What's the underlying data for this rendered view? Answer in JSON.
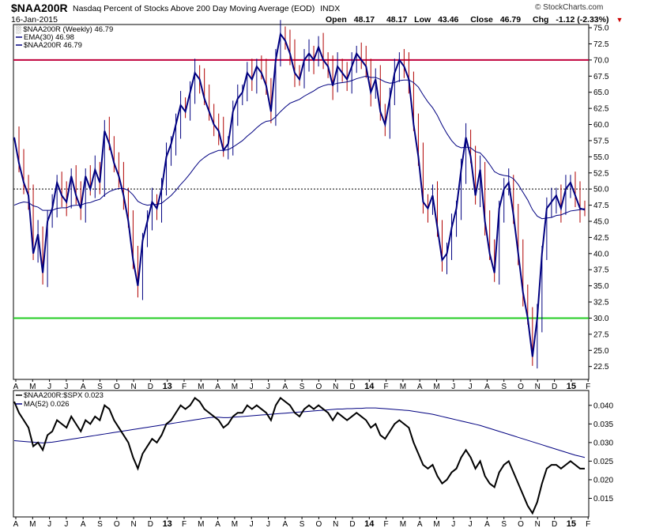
{
  "header": {
    "symbol": "$NAA200R",
    "description": "Nasdaq Percent of Stocks Above 200 Day Moving Average (EOD)",
    "exchange": "INDX",
    "date": "16-Jan-2015",
    "open_label": "Open",
    "open": "48.17",
    "high": "48.17",
    "low_label": "Low",
    "low": "43.46",
    "close_label": "Close",
    "close": "46.79",
    "chg_label": "Chg",
    "chg": "-1.12 (-2.33%)",
    "copyright": "© StockCharts.com"
  },
  "colors": {
    "price": "#000080",
    "ema": "#000080",
    "up_bar": "#000080",
    "down_bar": "#b00000",
    "upper_line": "#c0003c",
    "lower_line": "#22cc22",
    "mid_line": "#000000",
    "ratio": "#000000",
    "ratio_ma": "#000080"
  },
  "chart_data": [
    {
      "type": "line",
      "legend": [
        "$NAA200R (Weekly) 46.79",
        "EMA(30) 46.98",
        "$NAA200R 46.79"
      ],
      "ylim": [
        20.5,
        75.5
      ],
      "yticks": [
        22.5,
        25.0,
        27.5,
        30.0,
        32.5,
        35.0,
        37.5,
        40.0,
        42.5,
        45.0,
        47.5,
        50.0,
        52.5,
        55.0,
        57.5,
        60.0,
        62.5,
        65.0,
        67.5,
        70.0,
        72.5,
        75.0
      ],
      "xticks": [
        "A",
        "M",
        "J",
        "J",
        "A",
        "S",
        "O",
        "N",
        "D",
        "13",
        "F",
        "M",
        "A",
        "M",
        "J",
        "J",
        "A",
        "S",
        "O",
        "N",
        "D",
        "14",
        "F",
        "M",
        "A",
        "M",
        "J",
        "J",
        "A",
        "S",
        "O",
        "N",
        "D",
        "15",
        "F"
      ],
      "reference_lines": [
        70,
        50,
        30
      ],
      "series": [
        {
          "name": "$NAA200R",
          "values": [
            58,
            54,
            51,
            49,
            40,
            43,
            37,
            45,
            47,
            51,
            49,
            48,
            52,
            49,
            47,
            52,
            50,
            53,
            51,
            59,
            57,
            54,
            52,
            49,
            45,
            39,
            35,
            42,
            45,
            48,
            47,
            50,
            55,
            57,
            60,
            63,
            62,
            65,
            68,
            67,
            64,
            62,
            60,
            59,
            56,
            57,
            62,
            64,
            65,
            68,
            67,
            69,
            68,
            66,
            62,
            70,
            74,
            73,
            71,
            68,
            67,
            70,
            71,
            70,
            72,
            70,
            69,
            66,
            69,
            68,
            67,
            69,
            71,
            70,
            69,
            65,
            67,
            62,
            60,
            64,
            68,
            70,
            69,
            67,
            60,
            55,
            48,
            47,
            49,
            44,
            39,
            40,
            44,
            47,
            53,
            58,
            55,
            49,
            53,
            45,
            40,
            37,
            47,
            50,
            51,
            46,
            40,
            34,
            30,
            24,
            30,
            40,
            47,
            48,
            49,
            47,
            50,
            51,
            49,
            47,
            46.79
          ]
        },
        {
          "name": "EMA(30)",
          "values": [
            47.5,
            47.8,
            48.0,
            47.9,
            47.4,
            47.2,
            46.7,
            46.7,
            46.7,
            47.0,
            47.1,
            47.1,
            47.4,
            47.5,
            47.5,
            47.8,
            47.9,
            48.2,
            48.4,
            49.1,
            49.6,
            49.9,
            50.1,
            50.1,
            49.8,
            49.1,
            48.1,
            47.7,
            47.5,
            47.6,
            47.6,
            47.8,
            48.4,
            49.0,
            49.8,
            50.7,
            51.5,
            52.4,
            53.4,
            54.3,
            54.9,
            55.4,
            55.7,
            56.0,
            56.0,
            56.1,
            56.5,
            57.0,
            57.5,
            58.2,
            58.8,
            59.5,
            60.1,
            60.5,
            60.6,
            61.2,
            62.0,
            62.7,
            63.3,
            63.6,
            63.9,
            64.4,
            64.8,
            65.2,
            65.7,
            66.0,
            66.2,
            66.2,
            66.4,
            66.5,
            66.6,
            66.8,
            67.1,
            67.3,
            67.5,
            67.3,
            67.3,
            67.0,
            66.6,
            66.4,
            66.5,
            66.8,
            66.9,
            66.9,
            66.5,
            65.8,
            64.6,
            63.5,
            62.6,
            61.4,
            59.9,
            58.6,
            57.5,
            56.7,
            56.4,
            56.5,
            56.4,
            55.8,
            55.6,
            54.8,
            53.8,
            52.7,
            52.3,
            52.1,
            52.0,
            51.6,
            50.7,
            49.5,
            48.3,
            46.8,
            45.8,
            45.4,
            45.5,
            45.6,
            45.9,
            46.0,
            46.3,
            46.6,
            46.7,
            46.8,
            46.98
          ]
        }
      ]
    },
    {
      "type": "line",
      "legend": [
        "$NAA200R:$SPX 0.023",
        "MA(52) 0.026"
      ],
      "ylim": [
        0.01,
        0.044
      ],
      "yticks": [
        0.015,
        0.02,
        0.025,
        0.03,
        0.035,
        0.04
      ],
      "xticks": [
        "A",
        "M",
        "J",
        "J",
        "A",
        "S",
        "O",
        "N",
        "D",
        "13",
        "F",
        "M",
        "A",
        "M",
        "J",
        "J",
        "A",
        "S",
        "O",
        "N",
        "D",
        "14",
        "F",
        "M",
        "A",
        "M",
        "J",
        "J",
        "A",
        "S",
        "O",
        "N",
        "D",
        "15",
        "F"
      ],
      "series": [
        {
          "name": "$NAA200R:$SPX",
          "values": [
            0.041,
            0.038,
            0.036,
            0.034,
            0.029,
            0.03,
            0.028,
            0.032,
            0.033,
            0.036,
            0.035,
            0.034,
            0.037,
            0.035,
            0.033,
            0.036,
            0.035,
            0.037,
            0.036,
            0.04,
            0.039,
            0.036,
            0.034,
            0.032,
            0.03,
            0.026,
            0.023,
            0.027,
            0.029,
            0.031,
            0.03,
            0.032,
            0.035,
            0.036,
            0.038,
            0.04,
            0.039,
            0.04,
            0.042,
            0.041,
            0.039,
            0.038,
            0.037,
            0.036,
            0.034,
            0.035,
            0.037,
            0.038,
            0.038,
            0.04,
            0.039,
            0.04,
            0.039,
            0.038,
            0.036,
            0.04,
            0.042,
            0.041,
            0.04,
            0.038,
            0.037,
            0.039,
            0.04,
            0.039,
            0.04,
            0.039,
            0.038,
            0.036,
            0.038,
            0.037,
            0.036,
            0.037,
            0.038,
            0.037,
            0.036,
            0.034,
            0.035,
            0.032,
            0.031,
            0.033,
            0.035,
            0.036,
            0.035,
            0.034,
            0.03,
            0.027,
            0.024,
            0.023,
            0.024,
            0.021,
            0.019,
            0.02,
            0.022,
            0.023,
            0.026,
            0.028,
            0.026,
            0.023,
            0.025,
            0.021,
            0.019,
            0.018,
            0.022,
            0.024,
            0.025,
            0.022,
            0.019,
            0.016,
            0.013,
            0.011,
            0.014,
            0.019,
            0.023,
            0.024,
            0.024,
            0.023,
            0.024,
            0.025,
            0.024,
            0.023,
            0.023
          ]
        },
        {
          "name": "MA(52)",
          "values": [
            0.0305,
            0.0304,
            0.0303,
            0.0302,
            0.0301,
            0.03,
            0.0299,
            0.03,
            0.0301,
            0.0303,
            0.0305,
            0.0307,
            0.0309,
            0.0311,
            0.0313,
            0.0315,
            0.0317,
            0.0319,
            0.0321,
            0.0323,
            0.0325,
            0.0327,
            0.0329,
            0.0331,
            0.0333,
            0.0335,
            0.0337,
            0.0339,
            0.0341,
            0.0343,
            0.0345,
            0.0347,
            0.0349,
            0.0351,
            0.0353,
            0.0355,
            0.0357,
            0.0359,
            0.0361,
            0.0363,
            0.0365,
            0.0367,
            0.0368,
            0.0368,
            0.0367,
            0.0367,
            0.0368,
            0.0369,
            0.037,
            0.0371,
            0.0372,
            0.0373,
            0.0374,
            0.0375,
            0.0376,
            0.0377,
            0.0378,
            0.0379,
            0.038,
            0.0381,
            0.0382,
            0.0383,
            0.0384,
            0.0385,
            0.0386,
            0.0387,
            0.0388,
            0.0389,
            0.039,
            0.039,
            0.0391,
            0.0391,
            0.0392,
            0.0392,
            0.0393,
            0.0393,
            0.0393,
            0.0392,
            0.0391,
            0.039,
            0.0389,
            0.0388,
            0.0387,
            0.0386,
            0.0384,
            0.0382,
            0.038,
            0.0378,
            0.0376,
            0.0373,
            0.037,
            0.0367,
            0.0364,
            0.0361,
            0.0358,
            0.0355,
            0.0352,
            0.0349,
            0.0346,
            0.0342,
            0.0338,
            0.0334,
            0.033,
            0.0326,
            0.0322,
            0.0318,
            0.0314,
            0.031,
            0.0306,
            0.0302,
            0.0298,
            0.0294,
            0.029,
            0.0286,
            0.0282,
            0.0278,
            0.0274,
            0.027,
            0.0266,
            0.0263,
            0.026
          ]
        }
      ]
    }
  ]
}
